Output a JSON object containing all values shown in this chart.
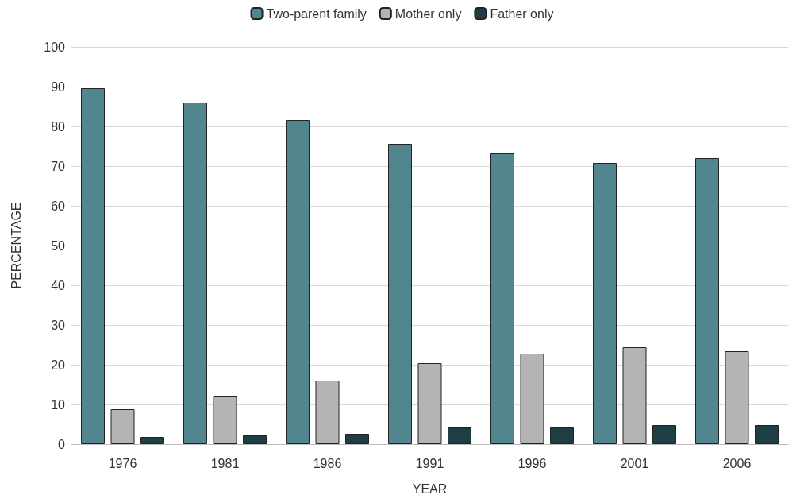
{
  "chart_data": {
    "type": "bar",
    "xlabel": "YEAR",
    "ylabel": "PERCENTAGE",
    "categories": [
      "1976",
      "1981",
      "1986",
      "1991",
      "1996",
      "2001",
      "2006"
    ],
    "series": [
      {
        "name": "Two-parent family",
        "color": "#52868f",
        "values": [
          89.6,
          86,
          81.6,
          75.6,
          73.2,
          70.8,
          72
        ]
      },
      {
        "name": "Mother only",
        "color": "#b4b4b4",
        "values": [
          8.8,
          12,
          16,
          20.4,
          22.8,
          24.4,
          23.4
        ]
      },
      {
        "name": "Father only",
        "color": "#1f3d44",
        "values": [
          1.8,
          2.2,
          2.6,
          4.2,
          4.2,
          4.8,
          4.8
        ]
      }
    ],
    "ylim": [
      0,
      100
    ],
    "yticks": [
      0,
      10,
      20,
      30,
      40,
      50,
      60,
      70,
      80,
      90,
      100
    ],
    "grid": "y",
    "legend": "top"
  }
}
